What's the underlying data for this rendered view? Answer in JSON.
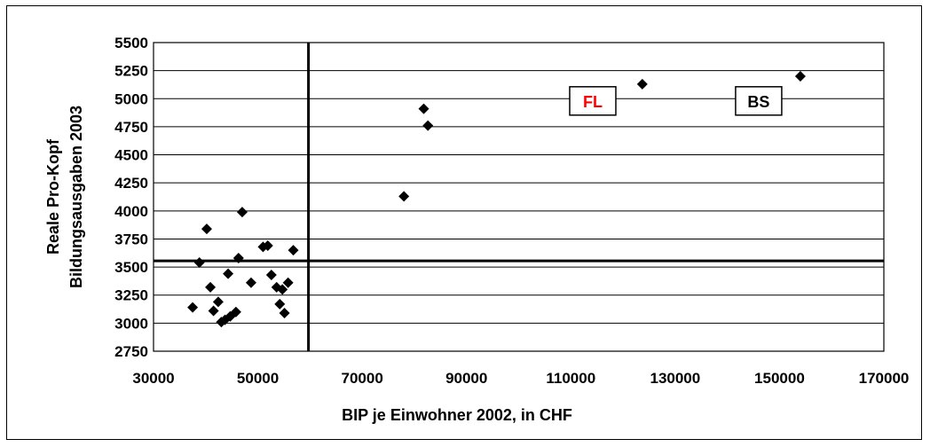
{
  "chart_data": {
    "type": "scatter",
    "title": "",
    "xlabel": "BIP je Einwohner 2002, in CHF",
    "ylabel_lines": [
      "Reale Pro-Kopf",
      "Bildungsausgaben 2003"
    ],
    "xlim": [
      30000,
      170000
    ],
    "ylim": [
      2750,
      5500
    ],
    "xticks": [
      30000,
      50000,
      70000,
      90000,
      110000,
      130000,
      150000,
      170000
    ],
    "yticks": [
      2750,
      3000,
      3250,
      3500,
      3750,
      4000,
      4250,
      4500,
      4750,
      5000,
      5250,
      5500
    ],
    "grid": true,
    "reference_lines": {
      "x": 59700,
      "y": 3555
    },
    "marker_color": "#000000",
    "points": [
      {
        "x": 37500,
        "y": 3140
      },
      {
        "x": 38800,
        "y": 3540
      },
      {
        "x": 40200,
        "y": 3840
      },
      {
        "x": 40900,
        "y": 3320
      },
      {
        "x": 41500,
        "y": 3110
      },
      {
        "x": 42400,
        "y": 3190
      },
      {
        "x": 43000,
        "y": 3010
      },
      {
        "x": 43700,
        "y": 3030
      },
      {
        "x": 44300,
        "y": 3440
      },
      {
        "x": 44700,
        "y": 3060
      },
      {
        "x": 45800,
        "y": 3100
      },
      {
        "x": 46300,
        "y": 3580
      },
      {
        "x": 47000,
        "y": 3990
      },
      {
        "x": 48700,
        "y": 3360
      },
      {
        "x": 51000,
        "y": 3680
      },
      {
        "x": 51900,
        "y": 3690
      },
      {
        "x": 52600,
        "y": 3430
      },
      {
        "x": 53600,
        "y": 3320
      },
      {
        "x": 54200,
        "y": 3170
      },
      {
        "x": 54700,
        "y": 3300
      },
      {
        "x": 55100,
        "y": 3090
      },
      {
        "x": 55800,
        "y": 3360
      },
      {
        "x": 56800,
        "y": 3650
      },
      {
        "x": 78000,
        "y": 4130
      },
      {
        "x": 81800,
        "y": 4910
      },
      {
        "x": 82600,
        "y": 4760
      },
      {
        "x": 123700,
        "y": 5130
      },
      {
        "x": 154000,
        "y": 5200
      }
    ],
    "annotations": [
      {
        "text": "FL",
        "color": "#ff0000",
        "anchor_x": 114200,
        "anchor_y": 4980
      },
      {
        "text": "BS",
        "color": "#000000",
        "anchor_x": 146000,
        "anchor_y": 4980
      }
    ]
  }
}
